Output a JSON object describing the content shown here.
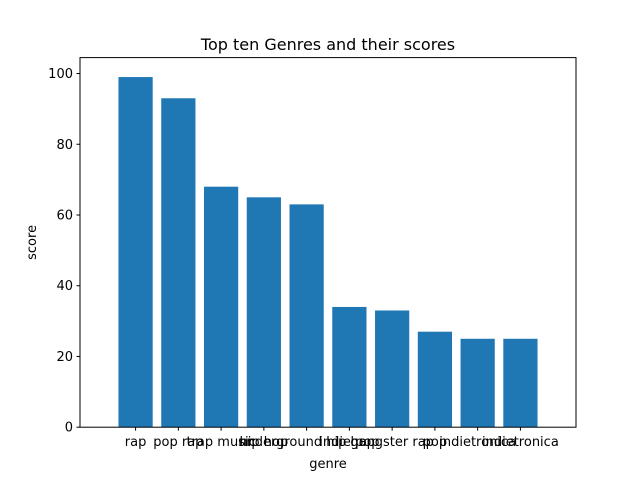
{
  "chart_data": {
    "type": "bar",
    "title": "Top ten Genres and their scores",
    "xlabel": "genre",
    "ylabel": "score",
    "categories": [
      "rap",
      "pop rap",
      "trap music",
      "hip hop",
      "underground hip hop",
      "indie pop",
      "gangster rap",
      "pop",
      "indietronica",
      "indietronica"
    ],
    "values": [
      99,
      93,
      68,
      65,
      63,
      34,
      33,
      27,
      25,
      25
    ],
    "ylim": [
      0,
      104.5
    ],
    "yticks": [
      0,
      20,
      40,
      60,
      80,
      100
    ],
    "bar_color": "#1f77b4",
    "grid": false,
    "legend": "none"
  }
}
